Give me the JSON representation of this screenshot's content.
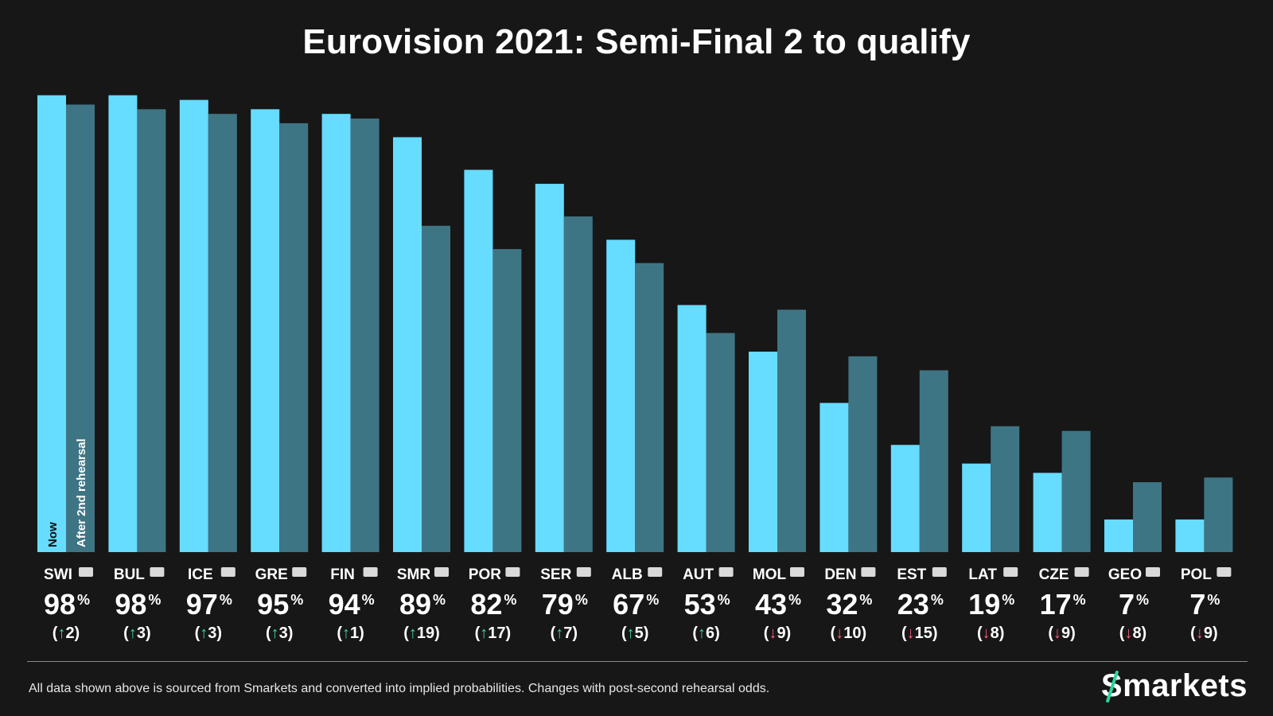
{
  "title": "Eurovision 2021: Semi-Final 2 to qualify",
  "footnote": "All data shown above is sourced from Smarkets and converted into implied probabilities. Changes with post-second rehearsal odds.",
  "logo": {
    "first": "S",
    "rest": "markets"
  },
  "colors": {
    "background": "#171717",
    "now": "#66dcff",
    "after": "#3e7585",
    "up": "#3ddc97",
    "down": "#ff5a7a"
  },
  "chart_data": {
    "type": "bar",
    "ylim": [
      0,
      100
    ],
    "grid": false,
    "series": [
      {
        "name": "Now",
        "values": [
          98,
          98,
          97,
          95,
          94,
          89,
          82,
          79,
          67,
          53,
          43,
          32,
          23,
          19,
          17,
          7,
          7
        ]
      },
      {
        "name": "After 2nd rehearsal",
        "values": [
          96,
          95,
          94,
          92,
          93,
          70,
          65,
          72,
          62,
          47,
          52,
          42,
          39,
          27,
          26,
          15,
          16
        ]
      }
    ],
    "categories": [
      "SWI",
      "BUL",
      "ICE",
      "GRE",
      "FIN",
      "SMR",
      "POR",
      "SER",
      "ALB",
      "AUT",
      "MOL",
      "DEN",
      "EST",
      "LAT",
      "CZE",
      "GEO",
      "POL"
    ],
    "flags": [
      "switzerland-flag-icon",
      "bulgaria-flag-icon",
      "iceland-flag-icon",
      "greece-flag-icon",
      "finland-flag-icon",
      "san-marino-flag-icon",
      "portugal-flag-icon",
      "serbia-flag-icon",
      "albania-flag-icon",
      "austria-flag-icon",
      "moldova-flag-icon",
      "denmark-flag-icon",
      "estonia-flag-icon",
      "latvia-flag-icon",
      "czechia-flag-icon",
      "georgia-flag-icon",
      "poland-flag-icon"
    ],
    "percent_labels": [
      "98",
      "98",
      "97",
      "95",
      "94",
      "89",
      "82",
      "79",
      "67",
      "53",
      "43",
      "32",
      "23",
      "19",
      "17",
      "7",
      "7"
    ],
    "percent_sign": "%",
    "change_labels": [
      {
        "dir": "up",
        "text": "2"
      },
      {
        "dir": "up",
        "text": "3"
      },
      {
        "dir": "up",
        "text": "3"
      },
      {
        "dir": "up",
        "text": "3"
      },
      {
        "dir": "up",
        "text": "1"
      },
      {
        "dir": "up",
        "text": "19"
      },
      {
        "dir": "up",
        "text": "17"
      },
      {
        "dir": "up",
        "text": "7"
      },
      {
        "dir": "up",
        "text": "5"
      },
      {
        "dir": "up",
        "text": "6"
      },
      {
        "dir": "down",
        "text": "9"
      },
      {
        "dir": "down",
        "text": "10"
      },
      {
        "dir": "down",
        "text": "15"
      },
      {
        "dir": "down",
        "text": "8"
      },
      {
        "dir": "down",
        "text": "9"
      },
      {
        "dir": "down",
        "text": "8"
      },
      {
        "dir": "down",
        "text": "9"
      }
    ]
  }
}
